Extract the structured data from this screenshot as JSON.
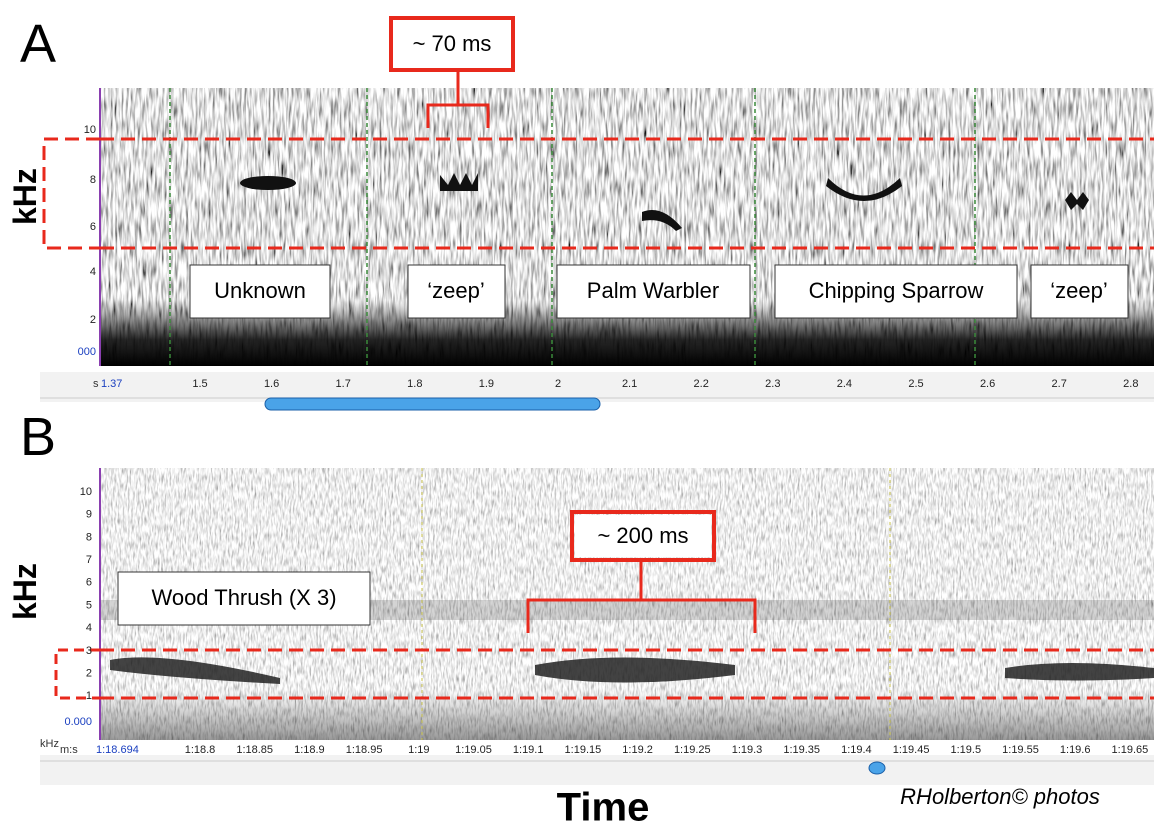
{
  "x_axis_label": "Time",
  "credit": "RHolberton© photos",
  "panels": [
    {
      "label": "A",
      "y_axis_label": "kHz",
      "x_unit": "s",
      "yticks": [
        "10",
        "8",
        "6",
        "4",
        "2",
        "000"
      ],
      "xticks": [
        "1.37",
        "1.5",
        "1.6",
        "1.7",
        "1.8",
        "1.9",
        "2",
        "2.1",
        "2.2",
        "2.3",
        "2.4",
        "2.5",
        "2.6",
        "2.7",
        "2.8"
      ],
      "duration": "~ 70 ms",
      "calls": [
        "Unknown",
        "‘zeep’",
        "Palm Warbler",
        "Chipping Sparrow",
        "‘zeep’"
      ]
    },
    {
      "label": "B",
      "y_axis_label": "kHz",
      "x_unit": "m:s",
      "y_unit": "kHz",
      "yticks": [
        "10",
        "9",
        "8",
        "7",
        "6",
        "5",
        "4",
        "3",
        "2",
        "1",
        "0.000"
      ],
      "xticks": [
        "1:18.694",
        "1:18.8",
        "1:18.85",
        "1:18.9",
        "1:18.95",
        "1:19",
        "1:19.05",
        "1:19.1",
        "1:19.15",
        "1:19.2",
        "1:19.25",
        "1:19.3",
        "1:19.35",
        "1:19.4",
        "1:19.45",
        "1:19.5",
        "1:19.55",
        "1:19.6",
        "1:19.65"
      ],
      "duration": "~ 200 ms",
      "calls": [
        "Wood Thrush (X 3)"
      ]
    }
  ]
}
